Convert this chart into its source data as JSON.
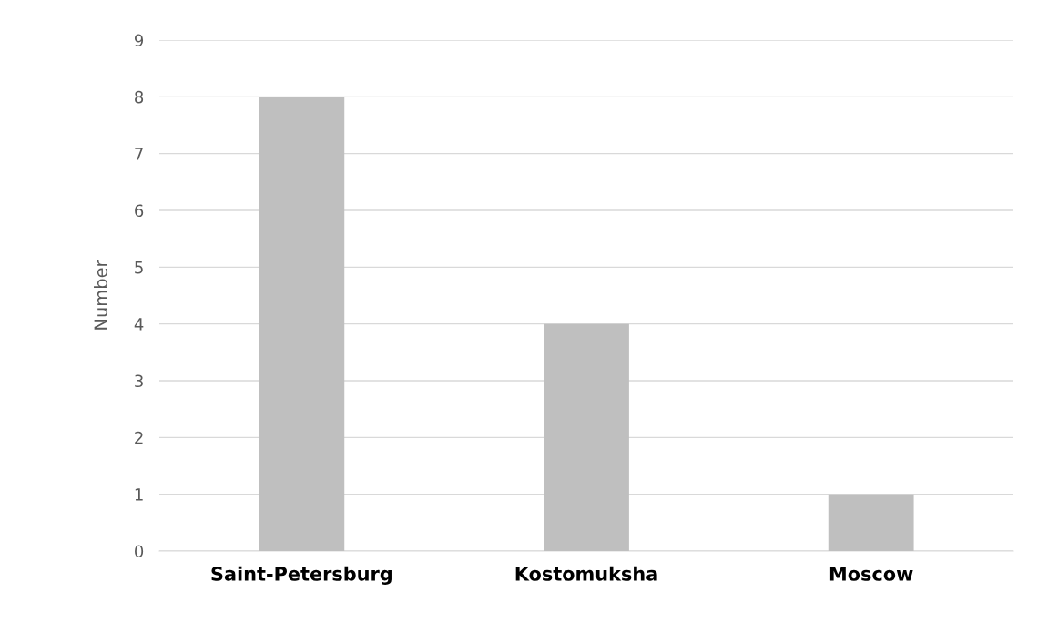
{
  "chart_data": {
    "type": "bar",
    "ylabel": "Number",
    "categories": [
      "Saint-Petersburg",
      "Kostomuksha",
      "Moscow"
    ],
    "values": [
      8,
      4,
      1
    ],
    "color": "#bfbfbf",
    "ylim": [
      0,
      9
    ],
    "yticks": [
      0,
      1,
      2,
      3,
      4,
      5,
      6,
      7,
      8,
      9
    ],
    "grid": "y"
  }
}
